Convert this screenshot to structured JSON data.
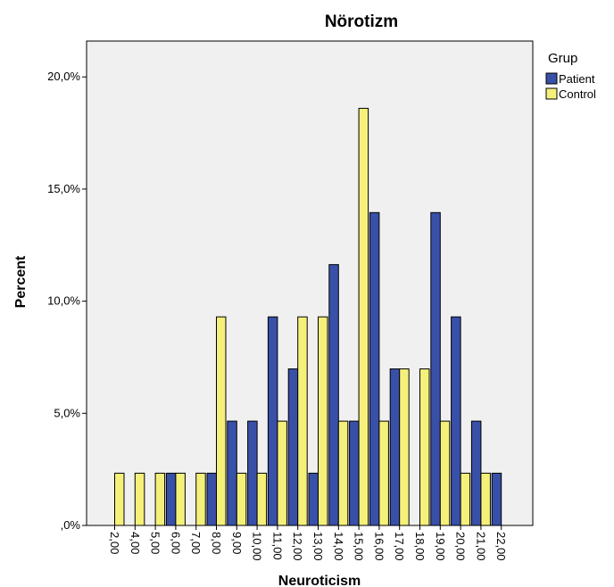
{
  "chart_data": {
    "type": "bar",
    "title": "Nörotizm",
    "xlabel": "Neuroticism",
    "ylabel": "Percent",
    "categories": [
      "2,00",
      "4,00",
      "5,00",
      "6,00",
      "7,00",
      "8,00",
      "9,00",
      "10,00",
      "11,00",
      "12,00",
      "13,00",
      "14,00",
      "15,00",
      "16,00",
      "17,00",
      "18,00",
      "19,00",
      "20,00",
      "21,00",
      "22,00"
    ],
    "series": [
      {
        "name": "Patient",
        "color": "#3850a8",
        "values": [
          0,
          0,
          0,
          2.33,
          0,
          2.33,
          4.65,
          4.65,
          9.3,
          6.98,
          2.33,
          11.63,
          4.65,
          13.95,
          6.98,
          0,
          13.95,
          9.3,
          4.65,
          2.33
        ]
      },
      {
        "name": "Control",
        "color": "#f5f07a",
        "values": [
          2.33,
          2.33,
          2.33,
          2.33,
          2.33,
          9.3,
          2.33,
          2.33,
          4.65,
          9.3,
          9.3,
          4.65,
          18.6,
          4.65,
          6.98,
          6.98,
          4.65,
          2.33,
          2.33,
          0
        ]
      }
    ],
    "ylim": [
      0,
      21.6
    ],
    "yticks": [
      0,
      5,
      10,
      15,
      20
    ],
    "ytick_labels": [
      ",0%",
      "5,0%",
      "10,0%",
      "15,0%",
      "20,0%"
    ],
    "legend": {
      "title": "Grup",
      "placement": "top-right"
    },
    "grid": false,
    "plot_background": "#f0f0f0"
  }
}
